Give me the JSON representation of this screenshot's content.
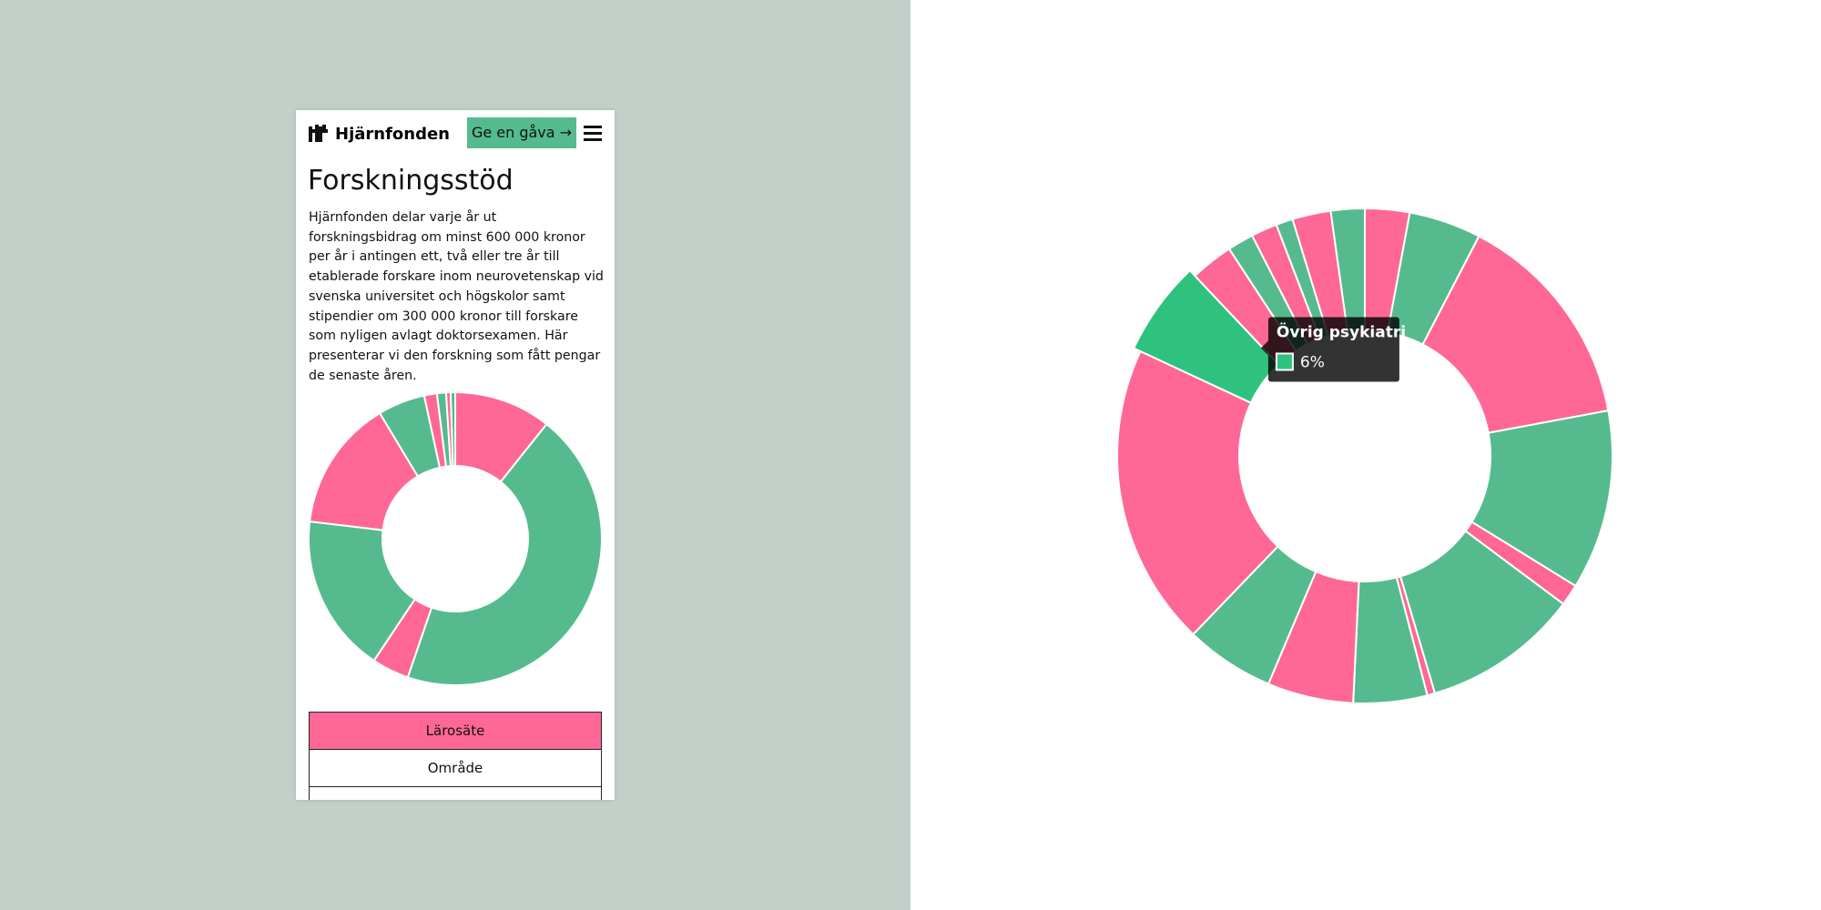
{
  "header": {
    "logo": "Hjärnfonden",
    "button": "Ge en gåva →"
  },
  "title": "Forskningsstöd",
  "paragraph": "Hjärnfonden delar varje år ut forskningsbidrag om minst 600 000 kronor per år i antingen ett, två eller tre år till etablerade forskare inom neurovetenskap vid svenska universitet och högskolor samt stipendier om 300 000 kronor till forskare som nyligen avlagt doktorsexamen. Här presenterar vi den forskning som fått pengar de senaste åren.",
  "tabs": [
    "Lärosäte",
    "Område"
  ],
  "chart_data": [
    {
      "type": "pie",
      "values": [
        10.7,
        44.5,
        4.1,
        17.5,
        14.5,
        5.2,
        1.4,
        1,
        0.5,
        0.5
      ],
      "colors": [
        "#ff6896",
        "#55bb8f",
        "#ff6896",
        "#55bb8f",
        "#ff6896",
        "#55bb8f",
        "#ff6896",
        "#55bb8f",
        "#ff6896",
        "#55bb8f"
      ]
    },
    {
      "type": "pie",
      "categories": [
        null,
        null,
        null,
        null,
        null,
        null,
        null,
        null,
        null,
        null,
        null,
        "Övrig psykiatri",
        null,
        null,
        null,
        null,
        null,
        null
      ],
      "values": [
        2.9,
        4.7,
        14.4,
        11.7,
        1.4,
        10.2,
        0.5,
        4.8,
        5.6,
        5.8,
        19.7,
        6,
        2.8,
        1.7,
        1.7,
        1.1,
        2.5,
        2.2
      ],
      "value_labels": [
        null,
        null,
        null,
        null,
        null,
        null,
        null,
        null,
        null,
        null,
        null,
        "6%",
        null,
        null,
        null,
        null,
        null,
        null
      ],
      "colors": [
        "#ff6896",
        "#55bb8f",
        "#ff6896",
        "#55bb8f",
        "#ff6896",
        "#55bb8f",
        "#ff6896",
        "#55bb8f",
        "#ff6896",
        "#55bb8f",
        "#ff6896",
        "#2ec27e",
        "#ff6896",
        "#55bb8f",
        "#ff6896",
        "#55bb8f",
        "#ff6896",
        "#55bb8f"
      ]
    }
  ]
}
